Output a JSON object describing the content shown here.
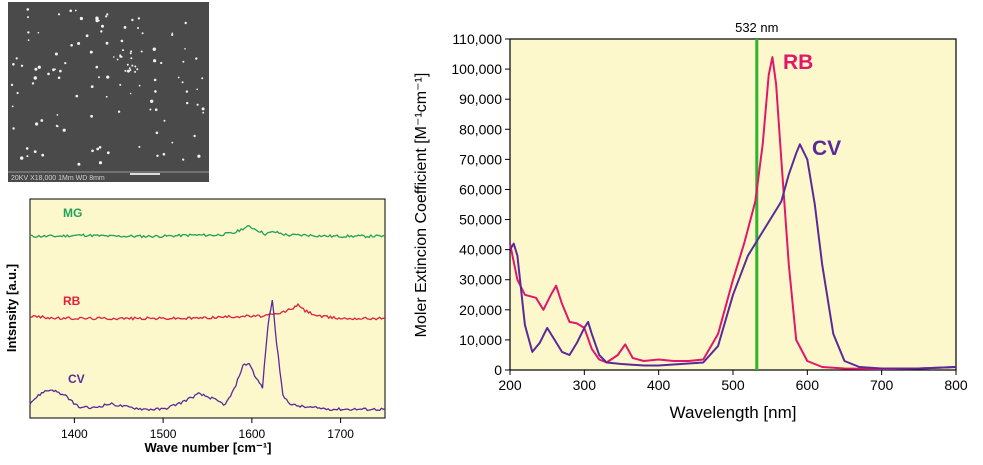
{
  "sem_image": {
    "caption_lettering": "20KV  X18,000   1Mm WD 8mm"
  },
  "chart_data": [
    {
      "type": "line",
      "xlabel": "Wave number [cm⁻¹]",
      "ylabel": "Intsnsity [a.u.]",
      "xlim": [
        1350,
        1750
      ],
      "x_ticks": [
        1400,
        1500,
        1600,
        1700
      ],
      "y_ticks_shown": false,
      "background": "#fdf8cc",
      "grid": false,
      "legend": "inline labels on the left",
      "series": [
        {
          "name": "MG",
          "color": "#22a05a",
          "baseline": 0.83,
          "x": [
            1350,
            1380,
            1410,
            1440,
            1470,
            1500,
            1530,
            1560,
            1580,
            1590,
            1597,
            1605,
            1615,
            1625,
            1640,
            1660,
            1690,
            1720,
            1750
          ],
          "values": [
            0.0,
            0.0,
            0.005,
            0.0,
            0.0,
            0.0,
            0.005,
            0.005,
            0.015,
            0.035,
            0.045,
            0.03,
            0.01,
            0.02,
            0.005,
            0.005,
            0.0,
            0.0,
            0.0
          ]
        },
        {
          "name": "RB",
          "color": "#e0203c",
          "baseline": 0.455,
          "x": [
            1350,
            1380,
            1410,
            1440,
            1470,
            1500,
            1530,
            1560,
            1590,
            1610,
            1630,
            1645,
            1652,
            1660,
            1675,
            1700,
            1730,
            1750
          ],
          "values": [
            0.01,
            0.0,
            0.0,
            0.0,
            0.0,
            0.0,
            0.0,
            0.005,
            0.01,
            0.01,
            0.02,
            0.045,
            0.06,
            0.035,
            0.01,
            0.0,
            0.0,
            0.0
          ]
        },
        {
          "name": "CV",
          "color": "#5a2a9a",
          "baseline": 0.04,
          "x": [
            1350,
            1365,
            1375,
            1390,
            1405,
            1420,
            1440,
            1460,
            1480,
            1500,
            1520,
            1540,
            1555,
            1570,
            1580,
            1590,
            1597,
            1605,
            1612,
            1618,
            1623,
            1628,
            1635,
            1645,
            1660,
            1690,
            1720,
            1750
          ],
          "values": [
            0.03,
            0.08,
            0.09,
            0.06,
            0.01,
            0.005,
            0.025,
            0.01,
            0.0,
            0.0,
            0.03,
            0.07,
            0.05,
            0.02,
            0.09,
            0.2,
            0.21,
            0.14,
            0.1,
            0.38,
            0.5,
            0.3,
            0.06,
            0.02,
            0.01,
            0.0,
            0.0,
            0.0
          ]
        }
      ]
    },
    {
      "type": "line",
      "xlabel": "Wavelength [nm]",
      "ylabel": "Moler Extincion Coefficient [M⁻¹cm⁻¹]",
      "xlim": [
        200,
        800
      ],
      "ylim": [
        0,
        110000
      ],
      "x_ticks": [
        200,
        300,
        400,
        500,
        600,
        700,
        800
      ],
      "y_ticks": [
        0,
        10000,
        20000,
        30000,
        40000,
        50000,
        60000,
        70000,
        80000,
        90000,
        100000,
        110000
      ],
      "y_tick_labels": [
        "0",
        "10,000",
        "20,000",
        "30,000",
        "40,000",
        "50,000",
        "60,000",
        "70,000",
        "80,000",
        "90,000",
        "100,000",
        "110,000"
      ],
      "background": "#fdf8cc",
      "grid": false,
      "legend": "inline labels near peaks",
      "annotations": [
        {
          "text": "532 nm",
          "x": 532,
          "color": "#2db52d"
        }
      ],
      "series": [
        {
          "name": "RB",
          "color": "#e0186a",
          "x": [
            200,
            205,
            210,
            220,
            235,
            245,
            255,
            262,
            270,
            280,
            290,
            300,
            310,
            320,
            330,
            345,
            355,
            365,
            380,
            400,
            420,
            440,
            460,
            480,
            500,
            515,
            530,
            540,
            548,
            553,
            558,
            565,
            575,
            585,
            600,
            620,
            650,
            700,
            750,
            800
          ],
          "values": [
            42000,
            36000,
            30000,
            25000,
            24000,
            20000,
            25000,
            28000,
            22000,
            16000,
            15500,
            14000,
            7000,
            3500,
            2500,
            5000,
            8500,
            4000,
            3000,
            3500,
            3000,
            3000,
            3500,
            12000,
            30000,
            42000,
            56000,
            75000,
            98000,
            104000,
            95000,
            70000,
            35000,
            10000,
            3000,
            1000,
            500,
            300,
            500,
            1000
          ]
        },
        {
          "name": "CV",
          "color": "#5a2a9a",
          "x": [
            200,
            205,
            210,
            220,
            230,
            240,
            250,
            260,
            270,
            280,
            290,
            300,
            305,
            310,
            320,
            330,
            350,
            380,
            400,
            430,
            460,
            480,
            500,
            520,
            540,
            555,
            565,
            575,
            585,
            590,
            600,
            610,
            620,
            635,
            650,
            670,
            700,
            750,
            800
          ],
          "values": [
            40000,
            42000,
            38000,
            15000,
            6000,
            9000,
            14000,
            10000,
            6000,
            5000,
            9000,
            14000,
            16000,
            12000,
            5000,
            2500,
            2000,
            1500,
            1500,
            2000,
            2500,
            8000,
            25000,
            38000,
            46000,
            52000,
            56000,
            65000,
            72000,
            75000,
            70000,
            55000,
            35000,
            12000,
            3000,
            1000,
            500,
            500,
            1000
          ]
        }
      ]
    }
  ]
}
